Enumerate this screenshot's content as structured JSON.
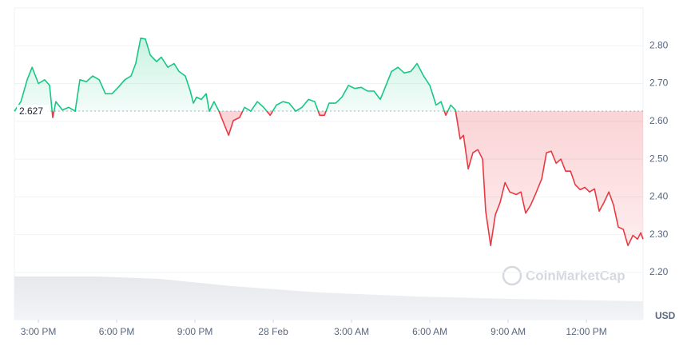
{
  "chart_data": {
    "type": "line",
    "y_axis_label": "USD",
    "watermark": "CoinMarketCap",
    "reference": {
      "value": 2.627,
      "label": "2.627"
    },
    "xlim": [
      2.08,
      26.17
    ],
    "xticks": [
      {
        "value": 3,
        "label": "3:00 PM"
      },
      {
        "value": 6,
        "label": "6:00 PM"
      },
      {
        "value": 9,
        "label": "9:00 PM"
      },
      {
        "value": 12,
        "label": "28 Feb"
      },
      {
        "value": 15,
        "label": "3:00 AM"
      },
      {
        "value": 18,
        "label": "6:00 AM"
      },
      {
        "value": 21,
        "label": "9:00 AM"
      },
      {
        "value": 24,
        "label": "12:00 PM"
      }
    ],
    "ylim": [
      2.075,
      2.9
    ],
    "yticks": [
      {
        "value": 2.2,
        "label": "2.20"
      },
      {
        "value": 2.3,
        "label": "2.30"
      },
      {
        "value": 2.4,
        "label": "2.40"
      },
      {
        "value": 2.5,
        "label": "2.50"
      },
      {
        "value": 2.6,
        "label": "2.60"
      },
      {
        "value": 2.7,
        "label": "2.70"
      },
      {
        "value": 2.8,
        "label": "2.80"
      }
    ],
    "grid": true,
    "up_color": "#16c784",
    "down_color": "#ea3943",
    "x": [
      2.08,
      2.33,
      2.57,
      2.76,
      3.0,
      3.24,
      3.43,
      3.55,
      3.67,
      3.92,
      4.16,
      4.41,
      4.59,
      4.84,
      5.08,
      5.33,
      5.57,
      5.82,
      6.06,
      6.31,
      6.55,
      6.73,
      6.92,
      7.1,
      7.29,
      7.53,
      7.71,
      7.96,
      8.2,
      8.39,
      8.63,
      8.82,
      8.94,
      9.06,
      9.24,
      9.43,
      9.55,
      9.73,
      9.92,
      10.04,
      10.29,
      10.47,
      10.71,
      10.9,
      11.14,
      11.39,
      11.63,
      11.88,
      12.12,
      12.37,
      12.61,
      12.86,
      13.1,
      13.35,
      13.59,
      13.78,
      13.96,
      14.14,
      14.39,
      14.63,
      14.88,
      15.12,
      15.37,
      15.61,
      15.86,
      16.1,
      16.29,
      16.53,
      16.78,
      17.02,
      17.27,
      17.51,
      17.76,
      18.0,
      18.24,
      18.43,
      18.61,
      18.8,
      18.98,
      19.16,
      19.29,
      19.47,
      19.65,
      19.84,
      20.02,
      20.14,
      20.33,
      20.51,
      20.69,
      20.88,
      21.06,
      21.31,
      21.49,
      21.67,
      21.86,
      22.04,
      22.29,
      22.47,
      22.65,
      22.84,
      23.02,
      23.2,
      23.39,
      23.57,
      23.76,
      23.94,
      24.12,
      24.31,
      24.49,
      24.67,
      24.86,
      25.04,
      25.22,
      25.41,
      25.59,
      25.78,
      25.96,
      26.08,
      26.17
    ],
    "values": [
      2.627,
      2.652,
      2.71,
      2.743,
      2.7,
      2.71,
      2.695,
      2.61,
      2.652,
      2.63,
      2.637,
      2.627,
      2.71,
      2.705,
      2.72,
      2.71,
      2.673,
      2.673,
      2.69,
      2.71,
      2.72,
      2.753,
      2.82,
      2.818,
      2.775,
      2.758,
      2.77,
      2.743,
      2.753,
      2.732,
      2.72,
      2.68,
      2.648,
      2.664,
      2.658,
      2.673,
      2.627,
      2.652,
      2.627,
      2.606,
      2.563,
      2.602,
      2.61,
      2.637,
      2.627,
      2.652,
      2.637,
      2.616,
      2.643,
      2.652,
      2.648,
      2.627,
      2.637,
      2.658,
      2.652,
      2.616,
      2.616,
      2.648,
      2.648,
      2.664,
      2.695,
      2.687,
      2.69,
      2.68,
      2.68,
      2.658,
      2.69,
      2.732,
      2.743,
      2.728,
      2.732,
      2.753,
      2.72,
      2.695,
      2.643,
      2.652,
      2.616,
      2.643,
      2.63,
      2.553,
      2.563,
      2.474,
      2.517,
      2.525,
      2.5,
      2.362,
      2.271,
      2.353,
      2.385,
      2.438,
      2.413,
      2.406,
      2.413,
      2.357,
      2.378,
      2.406,
      2.448,
      2.517,
      2.521,
      2.489,
      2.5,
      2.468,
      2.468,
      2.432,
      2.419,
      2.425,
      2.413,
      2.421,
      2.362,
      2.385,
      2.413,
      2.378,
      2.32,
      2.314,
      2.271,
      2.298,
      2.288,
      2.305,
      2.288
    ]
  }
}
